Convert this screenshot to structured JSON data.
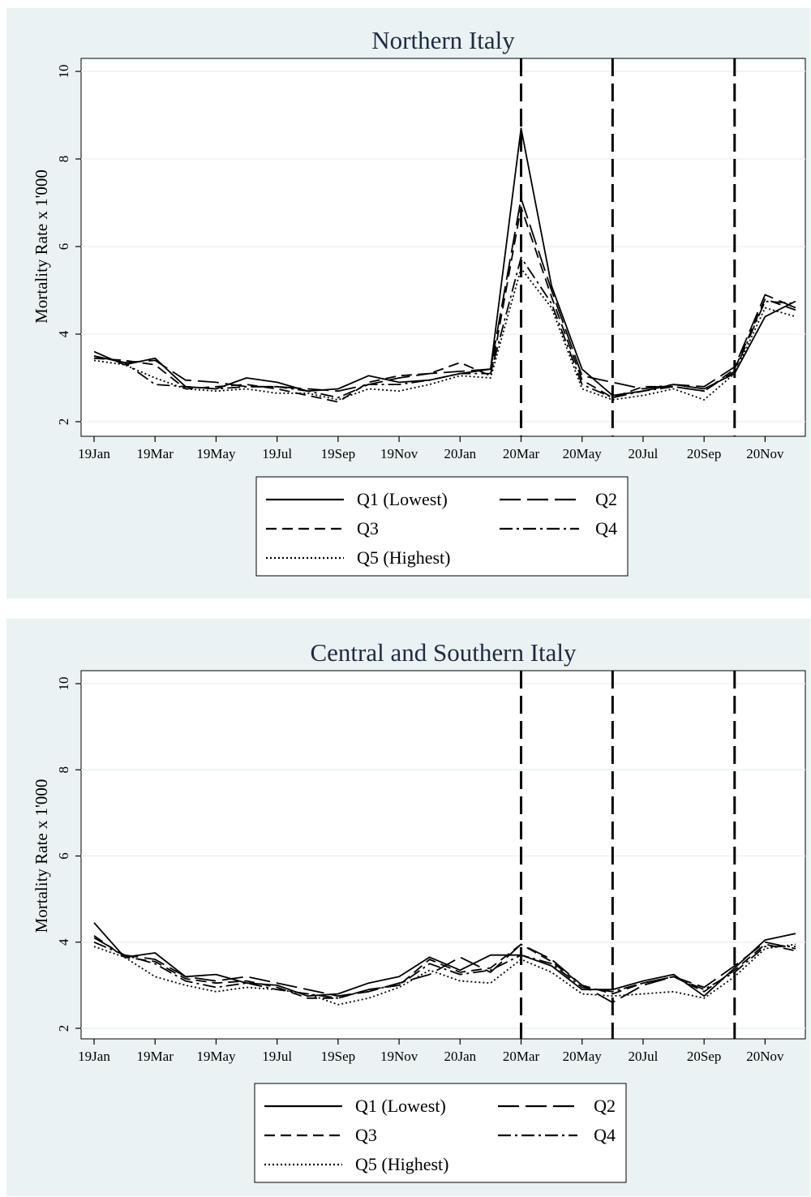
{
  "styles": {
    "Q1": {
      "dash": "none",
      "width": 1.8
    },
    "Q2": {
      "dash": "26 8",
      "width": 1.8
    },
    "Q3": {
      "dash": "13 7",
      "width": 1.8
    },
    "Q4": {
      "dash": "16 5 3 5",
      "width": 1.8
    },
    "Q5": {
      "dash": "2 3",
      "width": 1.6
    }
  },
  "chart_data": [
    {
      "type": "line",
      "title": "Northern Italy",
      "xlabel": "",
      "ylabel": "Mortality Rate x 1'000",
      "ylim": [
        2,
        10
      ],
      "yticks": [
        2,
        4,
        6,
        8,
        10
      ],
      "x": [
        "2019-01",
        "2019-02",
        "2019-03",
        "2019-04",
        "2019-05",
        "2019-06",
        "2019-07",
        "2019-08",
        "2019-09",
        "2019-10",
        "2019-11",
        "2019-12",
        "2020-01",
        "2020-02",
        "2020-03",
        "2020-04",
        "2020-05",
        "2020-06",
        "2020-07",
        "2020-08",
        "2020-09",
        "2020-10",
        "2020-11",
        "2020-12"
      ],
      "xtick_labels": [
        "19Jan",
        "19Mar",
        "19May",
        "19Jul",
        "19Sep",
        "19Nov",
        "20Jan",
        "20Mar",
        "20May",
        "20Jul",
        "20Sep",
        "20Nov"
      ],
      "vlines": [
        "2020-03",
        "2020-06",
        "2020-10"
      ],
      "series": [
        {
          "name": "Q1 (Lowest)",
          "key": "Q1",
          "values": [
            3.6,
            3.3,
            3.45,
            2.8,
            2.75,
            3.0,
            2.9,
            2.7,
            2.75,
            3.05,
            2.9,
            2.95,
            3.1,
            3.2,
            8.7,
            5.1,
            3.2,
            2.6,
            2.7,
            2.85,
            2.75,
            3.1,
            4.4,
            4.75
          ]
        },
        {
          "name": "Q2",
          "key": "Q2",
          "values": [
            3.5,
            3.35,
            3.4,
            2.95,
            2.9,
            2.8,
            2.8,
            2.75,
            2.7,
            2.85,
            3.0,
            3.1,
            3.15,
            3.2,
            7.1,
            5.0,
            3.05,
            2.9,
            2.75,
            2.85,
            2.8,
            3.25,
            4.9,
            4.6
          ]
        },
        {
          "name": "Q3",
          "key": "Q3",
          "values": [
            3.45,
            3.4,
            3.3,
            2.75,
            2.8,
            2.85,
            2.75,
            2.6,
            2.45,
            2.9,
            3.05,
            3.1,
            3.35,
            3.05,
            6.9,
            4.85,
            2.95,
            2.55,
            2.8,
            2.8,
            2.7,
            3.2,
            4.8,
            4.55
          ]
        },
        {
          "name": "Q4",
          "key": "Q4",
          "values": [
            3.5,
            3.35,
            2.85,
            2.8,
            2.75,
            2.8,
            2.8,
            2.7,
            2.55,
            2.85,
            2.85,
            2.95,
            3.1,
            3.1,
            5.75,
            4.7,
            2.85,
            2.55,
            2.7,
            2.8,
            2.7,
            3.15,
            4.75,
            4.7
          ]
        },
        {
          "name": "Q5 (Highest)",
          "key": "Q5",
          "values": [
            3.4,
            3.3,
            3.0,
            2.75,
            2.7,
            2.75,
            2.65,
            2.65,
            2.5,
            2.75,
            2.7,
            2.85,
            3.05,
            3.0,
            5.5,
            4.6,
            2.75,
            2.5,
            2.6,
            2.75,
            2.5,
            3.1,
            4.6,
            4.4
          ]
        }
      ]
    },
    {
      "type": "line",
      "title": "Central and Southern Italy",
      "xlabel": "",
      "ylabel": "Mortality Rate x 1'000",
      "ylim": [
        2,
        10
      ],
      "yticks": [
        2,
        4,
        6,
        8,
        10
      ],
      "x": [
        "2019-01",
        "2019-02",
        "2019-03",
        "2019-04",
        "2019-05",
        "2019-06",
        "2019-07",
        "2019-08",
        "2019-09",
        "2019-10",
        "2019-11",
        "2019-12",
        "2020-01",
        "2020-02",
        "2020-03",
        "2020-04",
        "2020-05",
        "2020-06",
        "2020-07",
        "2020-08",
        "2020-09",
        "2020-10",
        "2020-11",
        "2020-12"
      ],
      "xtick_labels": [
        "19Jan",
        "19Mar",
        "19May",
        "19Jul",
        "19Sep",
        "19Nov",
        "20Jan",
        "20Mar",
        "20May",
        "20Jul",
        "20Sep",
        "20Nov"
      ],
      "vlines": [
        "2020-03",
        "2020-06",
        "2020-10"
      ],
      "series": [
        {
          "name": "Q1 (Lowest)",
          "key": "Q1",
          "values": [
            4.45,
            3.65,
            3.75,
            3.2,
            3.25,
            3.05,
            3.0,
            2.75,
            2.8,
            3.05,
            3.2,
            3.65,
            3.35,
            3.7,
            3.7,
            3.45,
            2.9,
            2.9,
            3.1,
            3.25,
            2.75,
            3.4,
            4.05,
            4.2
          ]
        },
        {
          "name": "Q2",
          "key": "Q2",
          "values": [
            4.1,
            3.7,
            3.6,
            3.2,
            3.1,
            3.2,
            3.05,
            2.9,
            2.75,
            2.85,
            3.05,
            3.25,
            3.65,
            3.3,
            3.95,
            3.6,
            3.0,
            2.6,
            3.0,
            3.2,
            2.95,
            3.45,
            4.0,
            3.85
          ]
        },
        {
          "name": "Q3",
          "key": "Q3",
          "values": [
            4.15,
            3.65,
            3.55,
            3.15,
            3.05,
            3.1,
            2.95,
            2.7,
            2.7,
            2.9,
            3.0,
            3.6,
            3.3,
            3.4,
            3.95,
            3.55,
            3.0,
            2.8,
            3.05,
            3.2,
            2.85,
            3.35,
            3.95,
            3.8
          ]
        },
        {
          "name": "Q4",
          "key": "Q4",
          "values": [
            4.0,
            3.7,
            3.5,
            3.1,
            2.95,
            3.05,
            2.9,
            2.8,
            2.7,
            2.9,
            3.0,
            3.5,
            3.25,
            3.35,
            3.7,
            3.5,
            2.95,
            2.85,
            3.05,
            3.2,
            2.9,
            3.3,
            3.9,
            3.9
          ]
        },
        {
          "name": "Q5 (Highest)",
          "key": "Q5",
          "values": [
            3.9,
            3.65,
            3.2,
            3.0,
            2.85,
            2.95,
            2.9,
            2.8,
            2.55,
            2.7,
            2.95,
            3.35,
            3.1,
            3.05,
            3.6,
            3.3,
            2.8,
            2.75,
            2.8,
            2.85,
            2.7,
            3.2,
            3.85,
            3.95
          ]
        }
      ]
    }
  ]
}
